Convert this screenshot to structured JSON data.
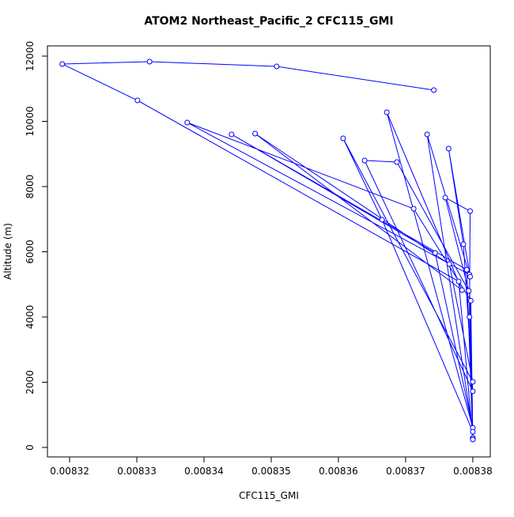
{
  "chart_data": {
    "type": "line",
    "title": "ATOM2 Northeast_Pacific_2 CFC115_GMI",
    "xlabel": "CFC115_GMI",
    "ylabel": "Altitude (m)",
    "color": "#0000ff",
    "markers": "open-circle",
    "x": [
      0.0083742,
      0.0083508,
      0.0083319,
      0.0083189,
      0.0083301,
      0.0083779,
      0.00838,
      0.0083795,
      0.0083375,
      0.0083712,
      0.0083797,
      0.00838,
      0.0083791,
      0.0083441,
      0.0083744,
      0.00838,
      0.0083672,
      0.0083784,
      0.0083476,
      0.0083765,
      0.00838,
      0.0083607,
      0.0083665,
      0.00838,
      0.0083732,
      0.0083796,
      0.0083764,
      0.0083786,
      0.00838,
      0.0083639,
      0.0083687,
      0.0083794,
      0.0083759,
      0.0083796,
      0.0083795,
      0.00838
    ],
    "values": [
      10958,
      11685,
      11830,
      11758,
      10642,
      5091,
      300,
      5300,
      9964,
      7321,
      4500,
      250,
      5450,
      9600,
      5964,
      600,
      10279,
      4824,
      9624,
      5624,
      2012,
      9479,
      6982,
      485,
      9600,
      5236,
      9164,
      6230,
      1721,
      8800,
      8752,
      4800,
      7661,
      7248,
      4000,
      242
    ],
    "xlim": [
      0.0083167,
      0.0083826
    ],
    "ylim": [
      -291,
      12315
    ],
    "xticks": [
      0.00832,
      0.00833,
      0.00834,
      0.00835,
      0.00836,
      0.00837,
      0.00838
    ],
    "yticks": [
      0,
      2000,
      4000,
      6000,
      8000,
      10000,
      12000
    ]
  }
}
